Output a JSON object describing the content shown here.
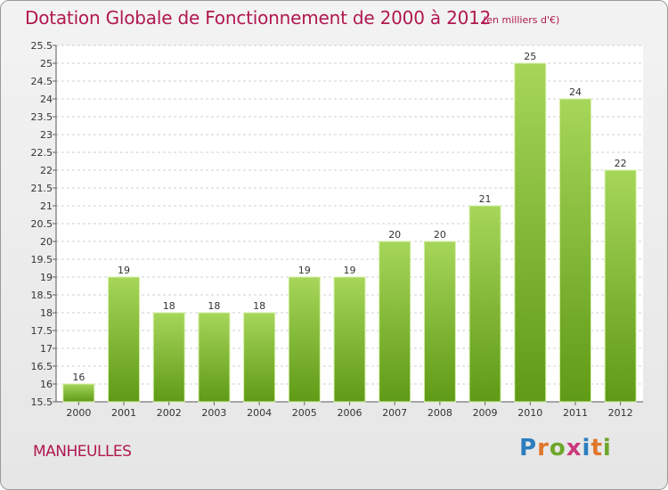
{
  "title": "Dotation Globale de Fonctionnement de 2000 à 2012",
  "unit_note": "(en milliers d'€)",
  "place_name": "MANHEULLES",
  "logo": {
    "text": "Proxiti",
    "letter_colors": [
      "#2c7ec0",
      "#e0762a",
      "#6da72b",
      "#c93a7c",
      "#2c7ec0",
      "#e0762a",
      "#6da72b"
    ]
  },
  "colors": {
    "title": "#b0184f",
    "bar_top": "#a6d65a",
    "bar_bottom": "#5f9a16",
    "bar_edge": "#d6f0a8"
  },
  "chart_data": {
    "type": "bar",
    "categories": [
      "2000",
      "2001",
      "2002",
      "2003",
      "2004",
      "2005",
      "2006",
      "2007",
      "2008",
      "2009",
      "2010",
      "2011",
      "2012"
    ],
    "values": [
      16,
      19,
      18,
      18,
      18,
      19,
      19,
      20,
      20,
      21,
      25,
      24,
      22
    ],
    "data_labels": [
      "16",
      "19",
      "18",
      "18",
      "18",
      "19",
      "19",
      "20",
      "20",
      "21",
      "25",
      "24",
      "22"
    ],
    "ylim": [
      15.5,
      25.5
    ],
    "yticks": [
      15.5,
      16,
      16.5,
      17,
      17.5,
      18,
      18.5,
      19,
      19.5,
      20,
      20.5,
      21,
      21.5,
      22,
      22.5,
      23,
      23.5,
      24,
      24.5,
      25,
      25.5
    ],
    "ytick_labels": [
      "15.5",
      "16",
      "16.5",
      "17",
      "17.5",
      "18",
      "18.5",
      "19",
      "19.5",
      "20",
      "20.5",
      "21",
      "21.5",
      "22",
      "22.5",
      "23",
      "23.5",
      "24",
      "24.5",
      "25",
      "25.5"
    ],
    "grid": true
  }
}
